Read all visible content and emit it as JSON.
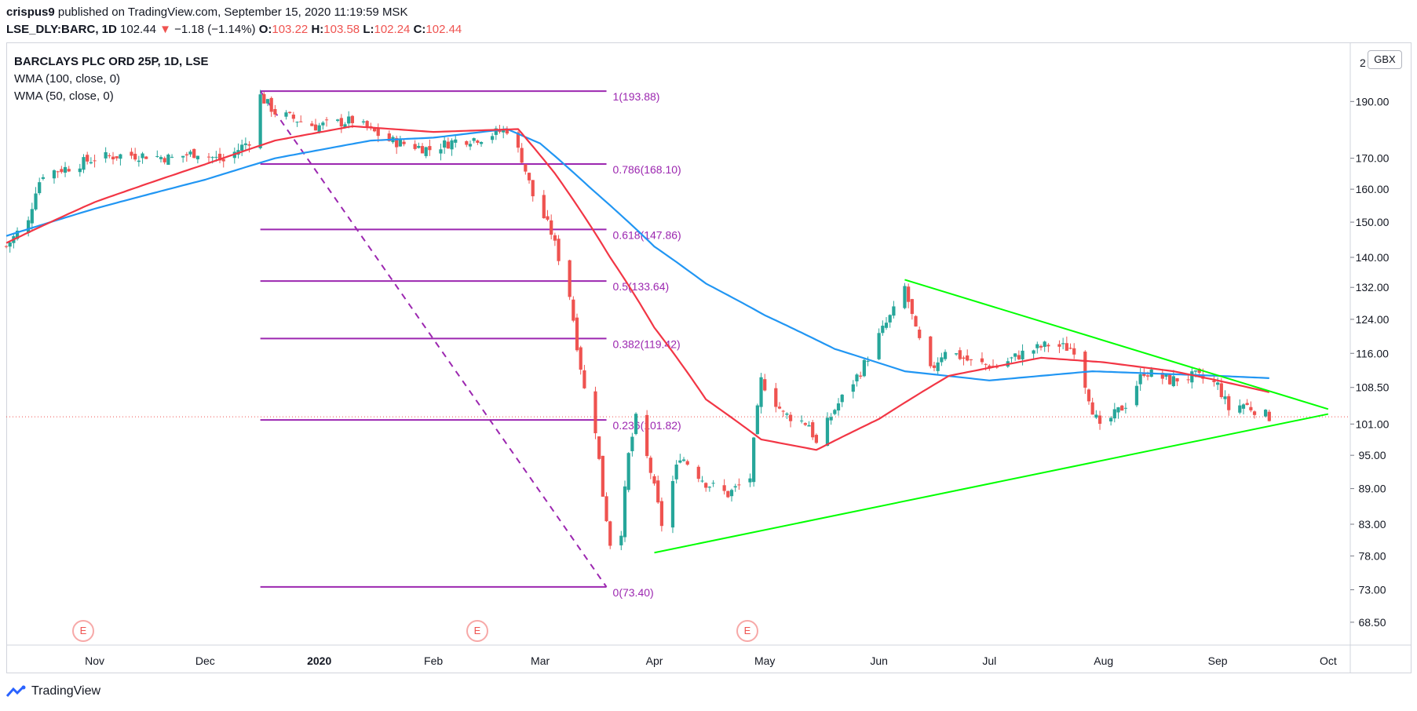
{
  "header": {
    "author": "crispus9",
    "published": "published on TradingView.com, September 15, 2020 11:19:59 MSK"
  },
  "ohlc": {
    "symbol": "LSE_DLY:BARC, 1D",
    "last": "102.44",
    "change": "−1.18 (−1.14%)",
    "o_label": "O:",
    "o": "103.22",
    "h_label": "H:",
    "h": "103.58",
    "l_label": "L:",
    "l": "102.24",
    "c_label": "C:",
    "c": "102.44"
  },
  "legend": {
    "title": "BARCLAYS PLC ORD 25P, 1D, LSE",
    "wma100": "WMA (100, close, 0)",
    "wma50": "WMA (50, close, 0)"
  },
  "currency_badge": "GBX",
  "earnings_marker": "E",
  "footer": {
    "brand": "TradingView"
  },
  "colors": {
    "up": "#26a69a",
    "down": "#ef5350",
    "wma100": "#2196f3",
    "wma50": "#f23645",
    "fib": "#9c27b0",
    "fib_label": "#9c27b0",
    "triangle": "#00ff00",
    "grid_border": "#d1d4dc"
  },
  "chart_data": {
    "type": "candlestick",
    "title": "BARCLAYS PLC ORD 25P, 1D, LSE",
    "y_axis": {
      "scale": "log",
      "ticks": [
        68.5,
        73.0,
        78.0,
        83.0,
        89.0,
        95.0,
        101.0,
        108.5,
        116.0,
        124.0,
        132.0,
        140.0,
        150.0,
        160.0,
        170.0,
        190.0
      ],
      "tick_labels": [
        "68.50",
        "73.00",
        "78.00",
        "83.00",
        "89.00",
        "95.00",
        "101.00",
        "108.50",
        "116.00",
        "124.00",
        "132.00",
        "140.00",
        "150.00",
        "160.00",
        "170.00",
        "190.00"
      ],
      "top_label": "2",
      "ylim": [
        65.5,
        213
      ]
    },
    "x_axis": {
      "start": "2019-10-08",
      "end": "2020-10-07",
      "labels": [
        {
          "date": "2019-11-01",
          "label": "Nov",
          "bold": false
        },
        {
          "date": "2019-12-01",
          "label": "Dec",
          "bold": false
        },
        {
          "date": "2020-01-01",
          "label": "2020",
          "bold": true
        },
        {
          "date": "2020-02-01",
          "label": "Feb",
          "bold": false
        },
        {
          "date": "2020-03-01",
          "label": "Mar",
          "bold": false
        },
        {
          "date": "2020-04-01",
          "label": "Apr",
          "bold": false
        },
        {
          "date": "2020-05-01",
          "label": "May",
          "bold": false
        },
        {
          "date": "2020-06-01",
          "label": "Jun",
          "bold": false
        },
        {
          "date": "2020-07-01",
          "label": "Jul",
          "bold": false
        },
        {
          "date": "2020-08-01",
          "label": "Aug",
          "bold": false
        },
        {
          "date": "2020-09-01",
          "label": "Sep",
          "bold": false
        },
        {
          "date": "2020-10-01",
          "label": "Oct",
          "bold": false
        }
      ]
    },
    "close_path": [
      [
        "2019-10-08",
        143
      ],
      [
        "2019-10-11",
        147
      ],
      [
        "2019-10-14",
        150
      ],
      [
        "2019-10-16",
        160
      ],
      [
        "2019-10-18",
        165
      ],
      [
        "2019-10-25",
        167
      ],
      [
        "2019-11-01",
        170
      ],
      [
        "2019-11-08",
        171
      ],
      [
        "2019-11-15",
        171
      ],
      [
        "2019-11-22",
        170
      ],
      [
        "2019-11-29",
        172
      ],
      [
        "2019-12-06",
        169
      ],
      [
        "2019-12-13",
        176
      ],
      [
        "2019-12-16",
        192
      ],
      [
        "2019-12-20",
        186
      ],
      [
        "2019-12-31",
        181
      ],
      [
        "2020-01-10",
        183
      ],
      [
        "2020-01-20",
        176
      ],
      [
        "2020-01-31",
        173
      ],
      [
        "2020-02-07",
        176
      ],
      [
        "2020-02-14",
        177
      ],
      [
        "2020-02-21",
        180
      ],
      [
        "2020-02-25",
        170
      ],
      [
        "2020-02-28",
        158
      ],
      [
        "2020-03-04",
        147
      ],
      [
        "2020-03-06",
        140
      ],
      [
        "2020-03-09",
        130
      ],
      [
        "2020-03-11",
        118
      ],
      [
        "2020-03-13",
        108
      ],
      [
        "2020-03-16",
        100
      ],
      [
        "2020-03-18",
        88
      ],
      [
        "2020-03-20",
        80
      ],
      [
        "2020-03-23",
        82
      ],
      [
        "2020-03-25",
        95
      ],
      [
        "2020-03-27",
        102
      ],
      [
        "2020-03-31",
        92
      ],
      [
        "2020-04-03",
        83
      ],
      [
        "2020-04-08",
        95
      ],
      [
        "2020-04-15",
        90
      ],
      [
        "2020-04-21",
        88
      ],
      [
        "2020-04-27",
        91
      ],
      [
        "2020-04-30",
        110
      ],
      [
        "2020-05-06",
        103
      ],
      [
        "2020-05-13",
        101
      ],
      [
        "2020-05-15",
        97
      ],
      [
        "2020-05-20",
        104
      ],
      [
        "2020-05-27",
        112
      ],
      [
        "2020-06-01",
        120
      ],
      [
        "2020-06-05",
        126
      ],
      [
        "2020-06-08",
        132
      ],
      [
        "2020-06-11",
        121
      ],
      [
        "2020-06-15",
        112
      ],
      [
        "2020-06-19",
        117
      ],
      [
        "2020-06-26",
        114
      ],
      [
        "2020-07-03",
        113
      ],
      [
        "2020-07-10",
        116
      ],
      [
        "2020-07-17",
        118
      ],
      [
        "2020-07-24",
        117
      ],
      [
        "2020-07-29",
        104
      ],
      [
        "2020-07-31",
        100
      ],
      [
        "2020-08-07",
        105
      ],
      [
        "2020-08-12",
        112
      ],
      [
        "2020-08-19",
        110
      ],
      [
        "2020-08-26",
        111
      ],
      [
        "2020-09-01",
        109
      ],
      [
        "2020-09-04",
        104
      ],
      [
        "2020-09-08",
        105
      ],
      [
        "2020-09-15",
        102.44
      ]
    ],
    "wma100_path": [
      [
        "2019-10-08",
        146
      ],
      [
        "2019-11-01",
        154
      ],
      [
        "2019-12-01",
        163
      ],
      [
        "2019-12-20",
        170
      ],
      [
        "2020-01-15",
        176
      ],
      [
        "2020-02-01",
        177
      ],
      [
        "2020-02-21",
        180
      ],
      [
        "2020-03-01",
        175
      ],
      [
        "2020-03-15",
        160
      ],
      [
        "2020-04-01",
        143
      ],
      [
        "2020-04-15",
        133
      ],
      [
        "2020-05-01",
        125
      ],
      [
        "2020-05-20",
        117
      ],
      [
        "2020-06-08",
        112
      ],
      [
        "2020-07-01",
        110
      ],
      [
        "2020-07-29",
        112
      ],
      [
        "2020-09-01",
        111
      ],
      [
        "2020-09-15",
        110.5
      ]
    ],
    "wma50_path": [
      [
        "2019-10-08",
        144
      ],
      [
        "2019-11-01",
        156
      ],
      [
        "2019-12-01",
        168
      ],
      [
        "2019-12-20",
        176
      ],
      [
        "2020-01-10",
        181
      ],
      [
        "2020-02-01",
        179
      ],
      [
        "2020-02-24",
        180
      ],
      [
        "2020-03-05",
        165
      ],
      [
        "2020-03-20",
        140
      ],
      [
        "2020-04-01",
        122
      ],
      [
        "2020-04-15",
        106
      ],
      [
        "2020-04-30",
        98
      ],
      [
        "2020-05-15",
        96
      ],
      [
        "2020-06-01",
        102
      ],
      [
        "2020-06-20",
        111
      ],
      [
        "2020-07-15",
        115
      ],
      [
        "2020-08-01",
        114
      ],
      [
        "2020-08-20",
        112
      ],
      [
        "2020-09-01",
        110
      ],
      [
        "2020-09-15",
        107.5
      ]
    ],
    "fibonacci": {
      "start_date": "2019-12-16",
      "end_date": "2020-03-19",
      "levels": [
        {
          "ratio_label": "1",
          "value": 193.88,
          "label": "1(193.88)"
        },
        {
          "ratio_label": "0.786",
          "value": 168.1,
          "label": "0.786(168.10)"
        },
        {
          "ratio_label": "0.618",
          "value": 147.86,
          "label": "0.618(147.86)"
        },
        {
          "ratio_label": "0.5",
          "value": 133.64,
          "label": "0.5(133.64)"
        },
        {
          "ratio_label": "0.382",
          "value": 119.42,
          "label": "0.382(119.42)"
        },
        {
          "ratio_label": "0.236",
          "value": 101.82,
          "label": "0.236(101.82)"
        },
        {
          "ratio_label": "0",
          "value": 73.4,
          "label": "0(73.40)"
        }
      ]
    },
    "triangle": {
      "upper": [
        [
          "2020-06-08",
          134
        ],
        [
          "2020-10-01",
          104
        ]
      ],
      "lower": [
        [
          "2020-04-01",
          78.5
        ],
        [
          "2020-10-01",
          103
        ]
      ]
    },
    "last_price": 102.44,
    "earnings_dates": [
      "2019-10-24",
      "2020-02-13",
      "2020-04-29"
    ]
  }
}
